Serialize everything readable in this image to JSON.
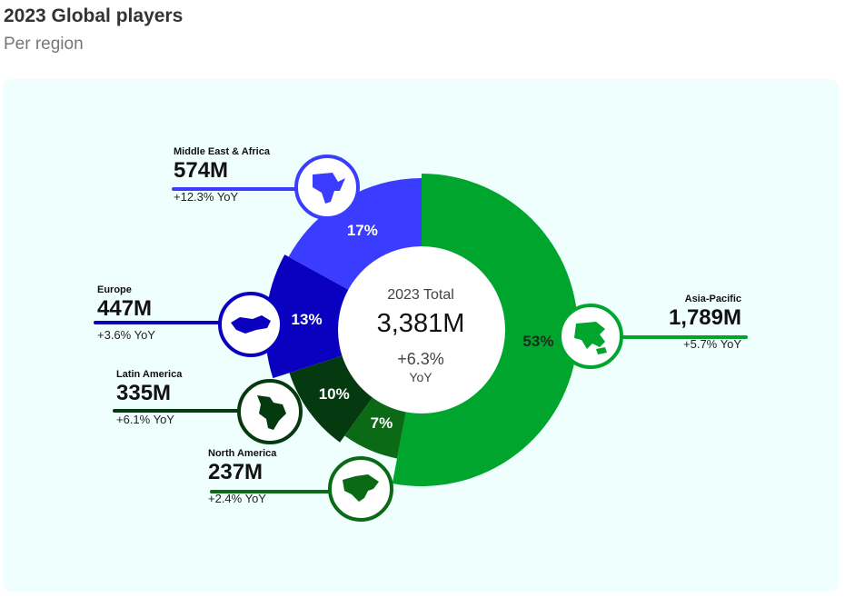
{
  "title": "2023 Global players",
  "subtitle": "Per region",
  "colors": {
    "background": "#effffd",
    "asia_pacific": "#00a52e",
    "middle_east_africa": "#3a3dff",
    "europe": "#0a00c0",
    "latin_america": "#053a10",
    "north_america": "#0b6a16"
  },
  "center": {
    "label": "2023 Total",
    "value": "3,381M",
    "yoy": "+6.3%",
    "yoy_suffix": "YoY"
  },
  "chart_data": {
    "type": "pie",
    "categories": [
      "Asia-Pacific",
      "North America",
      "Latin America",
      "Europe",
      "Middle East & Africa"
    ],
    "values": [
      53,
      7,
      10,
      13,
      17
    ],
    "slice_labels": [
      "53%",
      "7%",
      "10%",
      "13%",
      "17%"
    ],
    "players": [
      "1,789M",
      "237M",
      "335M",
      "447M",
      "574M"
    ],
    "yoy": [
      "+5.7% YoY",
      "+2.4% YoY",
      "+6.1% YoY",
      "+3.6% YoY",
      "+12.3% YoY"
    ],
    "icons": [
      "asia-pacific-map-icon",
      "north-america-map-icon",
      "latin-america-map-icon",
      "europe-map-icon",
      "africa-map-icon"
    ]
  }
}
